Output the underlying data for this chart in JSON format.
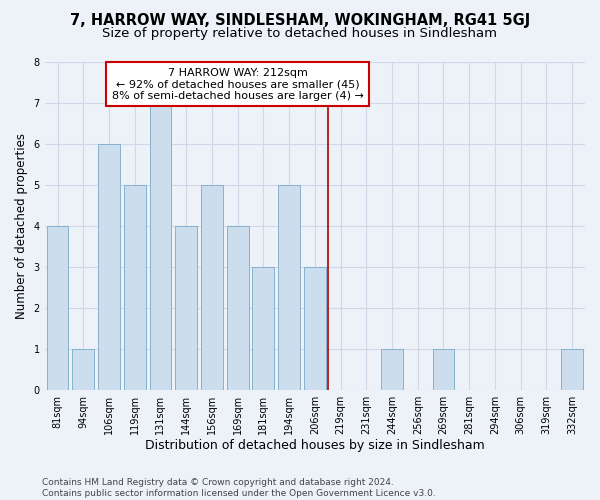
{
  "title": "7, HARROW WAY, SINDLESHAM, WOKINGHAM, RG41 5GJ",
  "subtitle": "Size of property relative to detached houses in Sindlesham",
  "xlabel": "Distribution of detached houses by size in Sindlesham",
  "ylabel": "Number of detached properties",
  "bar_color": "#ccdded",
  "bar_edge_color": "#7aaac8",
  "categories": [
    "81sqm",
    "94sqm",
    "106sqm",
    "119sqm",
    "131sqm",
    "144sqm",
    "156sqm",
    "169sqm",
    "181sqm",
    "194sqm",
    "206sqm",
    "219sqm",
    "231sqm",
    "244sqm",
    "256sqm",
    "269sqm",
    "281sqm",
    "294sqm",
    "306sqm",
    "319sqm",
    "332sqm"
  ],
  "values": [
    4,
    1,
    6,
    5,
    7,
    4,
    5,
    4,
    3,
    5,
    3,
    0,
    0,
    1,
    0,
    1,
    0,
    0,
    0,
    0,
    1
  ],
  "annotation_line1": "7 HARROW WAY: 212sqm",
  "annotation_line2": "← 92% of detached houses are smaller (45)",
  "annotation_line3": "8% of semi-detached houses are larger (4) →",
  "vline_bin_index": 10.5,
  "ylim": [
    0,
    8
  ],
  "yticks": [
    0,
    1,
    2,
    3,
    4,
    5,
    6,
    7,
    8
  ],
  "footnote": "Contains HM Land Registry data © Crown copyright and database right 2024.\nContains public sector information licensed under the Open Government Licence v3.0.",
  "background_color": "#edf2f9",
  "grid_color": "#d0d8e8",
  "title_fontsize": 10.5,
  "subtitle_fontsize": 9.5,
  "annotation_fontsize": 8,
  "tick_fontsize": 7,
  "ylabel_fontsize": 8.5,
  "xlabel_fontsize": 9,
  "footnote_fontsize": 6.5
}
